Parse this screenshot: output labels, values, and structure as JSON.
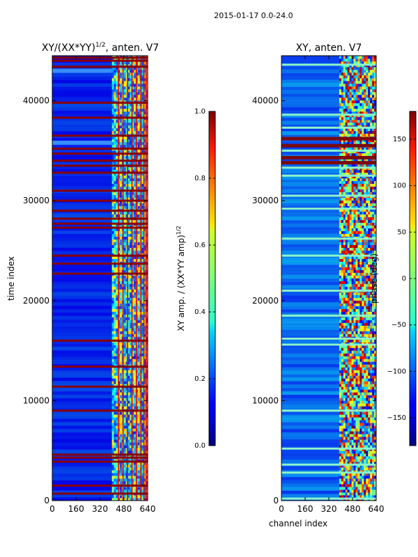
{
  "suptitle": "2015-01-17 0.0-24.0",
  "chart_data": [
    {
      "type": "heatmap",
      "title": "XY/(XX*YY)^{1/2}, anten. V7",
      "title_main": "XY/(XX*YY)",
      "title_sup": "1/2",
      "title_tail": ", anten. V7",
      "xlabel": "",
      "ylabel": "time index",
      "xlim": [
        0,
        640
      ],
      "ylim": [
        0,
        44500
      ],
      "xticks": [
        0,
        160,
        320,
        480,
        640
      ],
      "yticks": [
        0,
        10000,
        20000,
        30000,
        40000
      ],
      "colorbar": {
        "label": "XY amp. / (XX*YY amp)^{1/2}",
        "label_main": "XY amp. / (XX*YY amp)",
        "label_sup": "1/2",
        "range": [
          0.0,
          1.0
        ],
        "ticks": [
          0.0,
          0.2,
          0.4,
          0.6,
          0.8,
          1.0
        ],
        "tick_labels": [
          "0.0",
          "0.2",
          "0.4",
          "0.6",
          "0.8",
          "1.0"
        ]
      },
      "pattern": {
        "quiet_channels": [
          0,
          400
        ],
        "active_channels": [
          400,
          640
        ],
        "vertical_stripe_channels": [
          440,
          470,
          500,
          530,
          560,
          590,
          610,
          625
        ],
        "saturated_time_bands": [
          700,
          1500,
          3900,
          4300,
          4600,
          9000,
          11400,
          13400,
          16000,
          22700,
          23700,
          24500,
          27300,
          27700,
          28200,
          29000,
          30000,
          31000,
          32800,
          33500,
          34000,
          34700,
          35200,
          36500,
          38300,
          39800,
          43400,
          44000,
          44300
        ],
        "bright_patch_times": [
          35800,
          43000
        ]
      }
    },
    {
      "type": "heatmap",
      "title": "XY, anten. V7",
      "xlabel": "channel index",
      "ylabel": "",
      "xlim": [
        0,
        640
      ],
      "ylim": [
        0,
        44500
      ],
      "xticks": [
        0,
        160,
        320,
        480,
        640
      ],
      "yticks": [
        0,
        10000,
        20000,
        30000,
        40000
      ],
      "colorbar": {
        "label": "phase (deg)",
        "range": [
          -180,
          180
        ],
        "ticks": [
          -150,
          -100,
          -50,
          0,
          50,
          100,
          150
        ],
        "tick_labels": [
          "−150",
          "−100",
          "−50",
          "0",
          "50",
          "100",
          "150"
        ]
      },
      "pattern": {
        "quiet_channels": [
          0,
          390
        ],
        "active_channels": [
          390,
          640
        ],
        "light_time_bands": [
          200,
          2800,
          3600,
          5200,
          9000,
          15600,
          16200,
          18500,
          21000,
          24500,
          26200,
          29200,
          30500,
          32500,
          33300,
          35000,
          37300,
          38600,
          43600
        ],
        "dark_time_bands": [
          33800,
          34300,
          35500,
          36200
        ]
      }
    }
  ]
}
